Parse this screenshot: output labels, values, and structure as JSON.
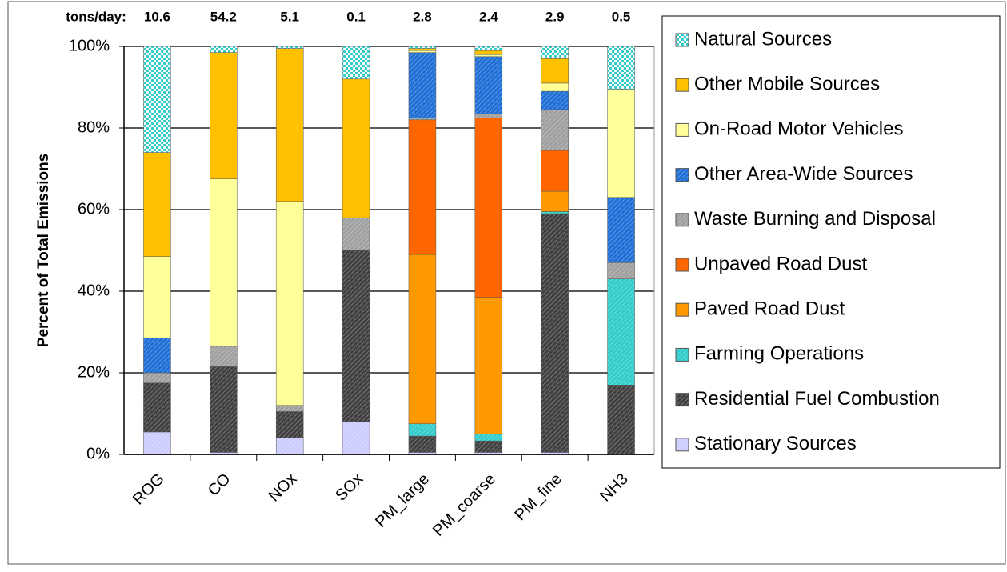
{
  "chart_data": {
    "type": "stacked_bar",
    "ylabel": "Percent of Total Emissions",
    "categories": [
      "ROG",
      "CO",
      "NOx",
      "SOx",
      "PM_large",
      "PM_coarse",
      "PM_fine",
      "NH3"
    ],
    "tons_per_day": {
      "label": "tons/day:",
      "values": [
        10.6,
        54.2,
        5.1,
        0.1,
        2.8,
        2.4,
        2.9,
        0.5
      ]
    },
    "series": [
      {
        "name": "Stationary Sources",
        "color": "#ccccff",
        "pattern": "hatch",
        "values": [
          5.5,
          0.5,
          4,
          8,
          0.5,
          0.5,
          0.5,
          0
        ]
      },
      {
        "name": "Residential Fuel Combustion",
        "color": "#404040",
        "pattern": "hatch",
        "values": [
          12,
          21,
          6.5,
          42,
          4,
          2.8,
          58.5,
          17
        ]
      },
      {
        "name": "Farming Operations",
        "color": "#33cccc",
        "pattern": "hatch",
        "values": [
          0,
          0,
          0,
          0,
          3,
          1.7,
          0.5,
          26
        ]
      },
      {
        "name": "Paved Road Dust",
        "color": "#ff9900",
        "pattern": "none",
        "values": [
          0,
          0,
          0,
          0,
          41.5,
          33.5,
          5,
          0
        ]
      },
      {
        "name": "Unpaved Road Dust",
        "color": "#ff6600",
        "pattern": "none",
        "values": [
          0,
          0,
          0,
          0,
          33,
          44,
          10,
          0
        ]
      },
      {
        "name": "Waste Burning and Disposal",
        "color": "#a0a0a0",
        "pattern": "hatch",
        "values": [
          2.5,
          5,
          1.5,
          8,
          0.5,
          1,
          10,
          4
        ]
      },
      {
        "name": "Other Area-Wide Sources",
        "color": "#1f6fd6",
        "pattern": "hatch",
        "values": [
          8.5,
          0,
          0,
          0,
          16,
          14,
          4.5,
          16
        ]
      },
      {
        "name": "On-Road Motor Vehicles",
        "color": "#ffff99",
        "pattern": "none",
        "values": [
          20,
          41,
          50,
          0,
          0.5,
          0.5,
          2,
          26.5
        ]
      },
      {
        "name": "Other Mobile Sources",
        "color": "#ffc000",
        "pattern": "none",
        "values": [
          25.5,
          31,
          37.5,
          34,
          0.5,
          1,
          6,
          0
        ]
      },
      {
        "name": "Natural Sources",
        "color": "#33cccc",
        "pattern": "checker",
        "values": [
          26,
          1.5,
          0.5,
          8,
          0.5,
          1,
          3,
          10.5
        ]
      }
    ],
    "ylim": [
      0,
      100
    ],
    "yticks": [
      {
        "value": 0,
        "label": "0%"
      },
      {
        "value": 20,
        "label": "20%"
      },
      {
        "value": 40,
        "label": "40%"
      },
      {
        "value": 60,
        "label": "60%"
      },
      {
        "value": 80,
        "label": "80%"
      },
      {
        "value": 100,
        "label": "100%"
      }
    ],
    "grid": true,
    "legend": "right"
  }
}
